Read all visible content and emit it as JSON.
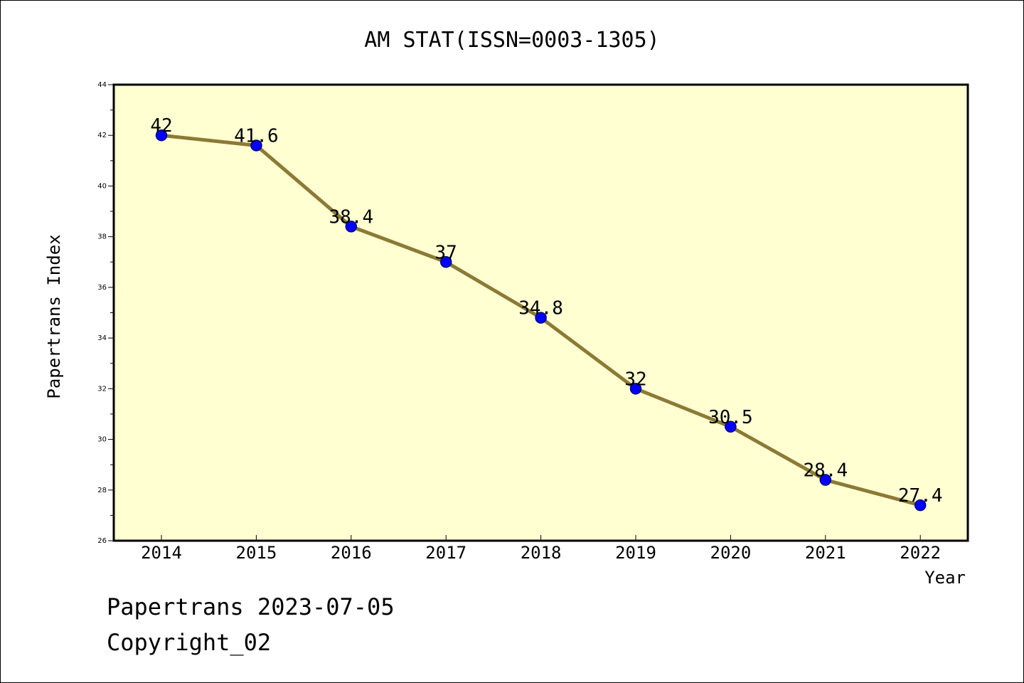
{
  "chart_data": {
    "type": "line",
    "title": "AM STAT(ISSN=0003-1305)",
    "xlabel": "Year",
    "ylabel": "Papertrans Index",
    "categories": [
      "2014",
      "2015",
      "2016",
      "2017",
      "2018",
      "2019",
      "2020",
      "2021",
      "2022"
    ],
    "series": [
      {
        "values": [
          42,
          41.6,
          38.4,
          37,
          34.8,
          32,
          30.5,
          28.4,
          27.4
        ],
        "data_labels": [
          "42",
          "41.6",
          "38.4",
          "37",
          "34.8",
          "32",
          "30.5",
          "28.4",
          "27.4"
        ]
      }
    ],
    "ylim": [
      26,
      44
    ],
    "yticks": [
      "26",
      "28",
      "30",
      "32",
      "34",
      "36",
      "38",
      "40",
      "42",
      "44"
    ],
    "grid": false,
    "legend": "none",
    "colors": {
      "plot_background": "#ffffd2",
      "line": "#8b7a35",
      "marker_fill": "#0000ff",
      "marker_stroke": "#000080"
    }
  },
  "footer": {
    "line1": "Papertrans 2023-07-05",
    "line2": "Copyright_02"
  }
}
